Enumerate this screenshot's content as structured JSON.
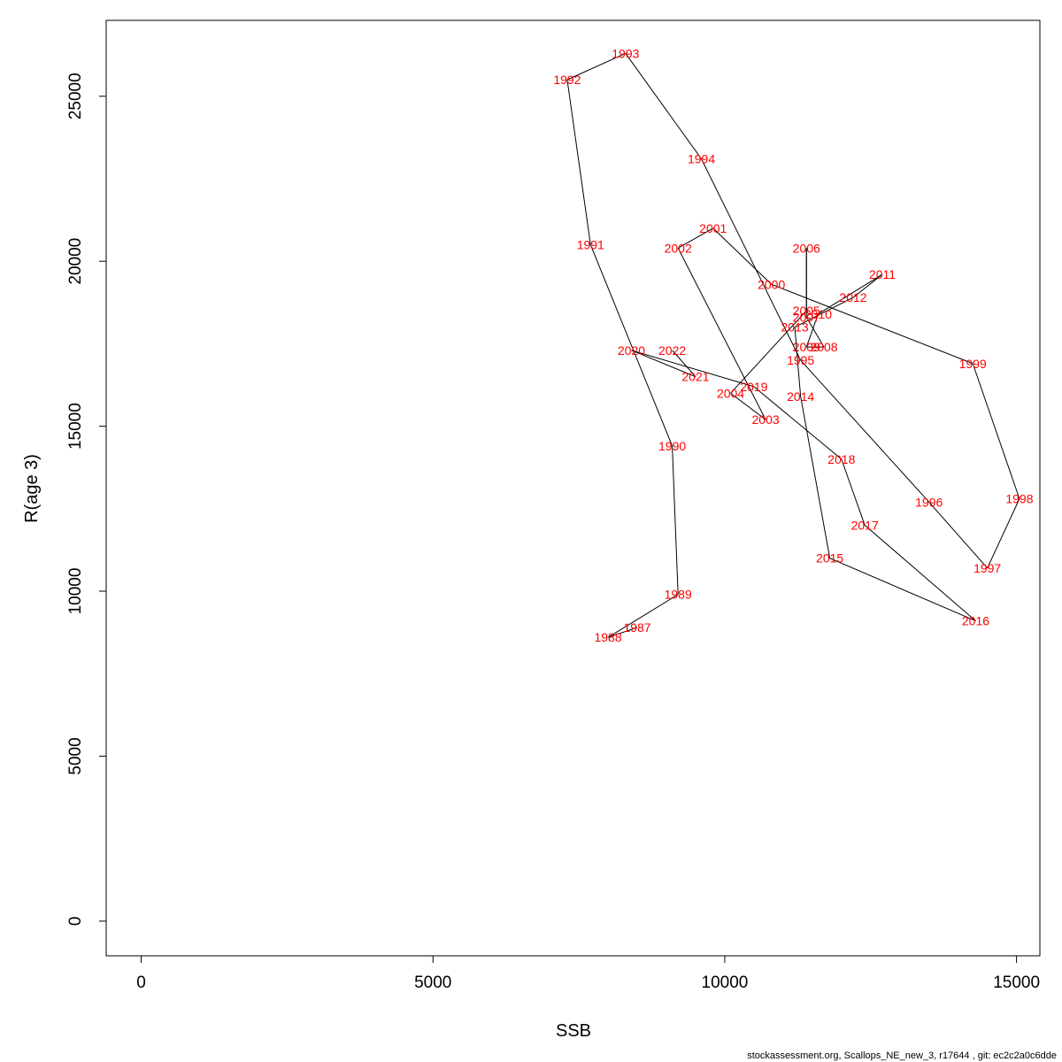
{
  "chart_data": {
    "type": "line",
    "title": "",
    "xlabel": "SSB",
    "ylabel": "R(age 3)",
    "xlim": [
      -600,
      15400
    ],
    "ylim": [
      -1050,
      27300
    ],
    "x_ticks": [
      0,
      5000,
      10000,
      15000
    ],
    "y_ticks": [
      0,
      5000,
      10000,
      15000,
      20000,
      25000
    ],
    "grid": false,
    "line_color": "#000000",
    "label_color": "#ff0000",
    "points": [
      {
        "label": "1987",
        "x": 8500,
        "y": 8900
      },
      {
        "label": "1988",
        "x": 8000,
        "y": 8600
      },
      {
        "label": "1989",
        "x": 9200,
        "y": 9900
      },
      {
        "label": "1990",
        "x": 9100,
        "y": 14400
      },
      {
        "label": "1991",
        "x": 7700,
        "y": 20500
      },
      {
        "label": "1992",
        "x": 7300,
        "y": 25500
      },
      {
        "label": "1993",
        "x": 8300,
        "y": 26300
      },
      {
        "label": "1994",
        "x": 9600,
        "y": 23100
      },
      {
        "label": "1995",
        "x": 11300,
        "y": 17000
      },
      {
        "label": "1996",
        "x": 13500,
        "y": 12700
      },
      {
        "label": "1997",
        "x": 14500,
        "y": 10700
      },
      {
        "label": "1998",
        "x": 15050,
        "y": 12800
      },
      {
        "label": "1999",
        "x": 14250,
        "y": 16900
      },
      {
        "label": "2000",
        "x": 10800,
        "y": 19300
      },
      {
        "label": "2001",
        "x": 9800,
        "y": 21000
      },
      {
        "label": "2002",
        "x": 9200,
        "y": 20400
      },
      {
        "label": "2003",
        "x": 10700,
        "y": 15200
      },
      {
        "label": "2004",
        "x": 10100,
        "y": 16000
      },
      {
        "label": "2005",
        "x": 11400,
        "y": 18500
      },
      {
        "label": "2006",
        "x": 11400,
        "y": 20400
      },
      {
        "label": "2007",
        "x": 11400,
        "y": 18300
      },
      {
        "label": "2008",
        "x": 11700,
        "y": 17400
      },
      {
        "label": "2009",
        "x": 11400,
        "y": 17400
      },
      {
        "label": "2010",
        "x": 11600,
        "y": 18400
      },
      {
        "label": "2011",
        "x": 12700,
        "y": 19600
      },
      {
        "label": "2012",
        "x": 12200,
        "y": 18900
      },
      {
        "label": "2013",
        "x": 11200,
        "y": 18000
      },
      {
        "label": "2014",
        "x": 11300,
        "y": 15900
      },
      {
        "label": "2015",
        "x": 11800,
        "y": 11000
      },
      {
        "label": "2016",
        "x": 14300,
        "y": 9100
      },
      {
        "label": "2017",
        "x": 12400,
        "y": 12000
      },
      {
        "label": "2018",
        "x": 12000,
        "y": 14000
      },
      {
        "label": "2019",
        "x": 10500,
        "y": 16200
      },
      {
        "label": "2020",
        "x": 8400,
        "y": 17300
      },
      {
        "label": "2021",
        "x": 9500,
        "y": 16500
      },
      {
        "label": "2022",
        "x": 9100,
        "y": 17300
      }
    ]
  },
  "footer": "stockassessment.org, Scallops_NE_new_3, r17644 , git: ec2c2a0c6dde"
}
